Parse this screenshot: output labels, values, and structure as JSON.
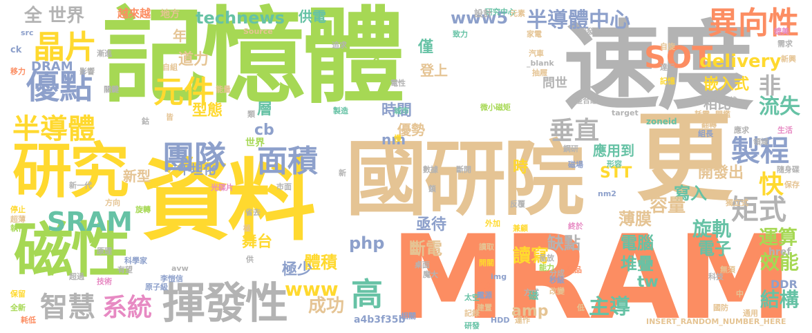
{
  "palette": {
    "green": "#a6d854",
    "yellow": "#ffd92f",
    "tan": "#e5c494",
    "gray": "#b3b3b3",
    "orange": "#fc8d62",
    "blue": "#8da0cb",
    "pink": "#e78ac3",
    "teal": "#66c2a5"
  },
  "words": [
    {
      "text": "記憶體",
      "color": "green"
    },
    {
      "text": "速度",
      "color": "gray"
    },
    {
      "text": "國研院",
      "color": "tan"
    },
    {
      "text": "更",
      "color": "tan"
    },
    {
      "text": "MRAM",
      "color": "orange"
    },
    {
      "text": "資料",
      "color": "yellow"
    },
    {
      "text": "研究",
      "color": "yellow"
    },
    {
      "text": "磁性",
      "color": "green"
    },
    {
      "text": "揮發性",
      "color": "gray"
    },
    {
      "text": "晶片",
      "color": "yellow"
    },
    {
      "text": "優點",
      "color": "blue"
    },
    {
      "text": "全 世界",
      "color": "gray"
    },
    {
      "text": "半導體",
      "color": "yellow"
    },
    {
      "text": "SRAM",
      "color": "teal"
    },
    {
      "text": "智慧",
      "color": "gray"
    },
    {
      "text": "系統",
      "color": "pink"
    },
    {
      "text": "團隊",
      "color": "blue"
    },
    {
      "text": "元件",
      "color": "yellow"
    },
    {
      "text": "道力",
      "color": "tan"
    },
    {
      "text": "面積",
      "color": "blue"
    },
    {
      "text": "SOT",
      "color": "orange"
    },
    {
      "text": "異向性",
      "color": "orange"
    },
    {
      "text": "半導體中心",
      "color": "blue"
    },
    {
      "text": "www5",
      "color": "blue"
    },
    {
      "text": "technews",
      "color": "teal"
    },
    {
      "text": "垂直",
      "color": "gray"
    },
    {
      "text": "製程",
      "color": "blue"
    },
    {
      "text": "流失",
      "color": "teal"
    },
    {
      "text": "快",
      "color": "yellow"
    },
    {
      "text": "矩式",
      "color": "gray"
    },
    {
      "text": "高",
      "color": "teal"
    },
    {
      "text": "成功",
      "color": "tan"
    },
    {
      "text": "主導",
      "color": "teal"
    },
    {
      "text": "結構",
      "color": "teal"
    },
    {
      "text": "效能",
      "color": "green"
    },
    {
      "text": "運算",
      "color": "green"
    },
    {
      "text": "電子",
      "color": "teal"
    },
    {
      "text": "電腦",
      "color": "teal"
    },
    {
      "text": "旋軌",
      "color": "teal"
    },
    {
      "text": "堆疊",
      "color": "teal"
    },
    {
      "text": "讀寫",
      "color": "yellow"
    },
    {
      "text": "斷電",
      "color": "tan"
    },
    {
      "text": "體積",
      "color": "yellow"
    },
    {
      "text": "極少",
      "color": "blue"
    },
    {
      "text": "www",
      "color": "yellow"
    },
    {
      "text": "php",
      "color": "blue"
    },
    {
      "text": "delivery",
      "color": "yellow"
    },
    {
      "text": "嵌入式",
      "color": "yellow"
    },
    {
      "text": "相比",
      "color": "gray"
    },
    {
      "text": "非",
      "color": "gray"
    },
    {
      "text": "時間",
      "color": "blue"
    },
    {
      "text": "型態",
      "color": "yellow"
    },
    {
      "text": "層",
      "color": "teal"
    },
    {
      "text": "開發出",
      "color": "tan"
    },
    {
      "text": "寫入",
      "color": "teal"
    },
    {
      "text": "容量",
      "color": "tan"
    },
    {
      "text": "薄膜",
      "color": "tan"
    },
    {
      "text": "缺點",
      "color": "gray"
    },
    {
      "text": "STT",
      "color": "yellow"
    },
    {
      "text": "tw",
      "color": "teal"
    },
    {
      "text": "DDR",
      "color": "blue"
    },
    {
      "text": "amp",
      "color": "tan"
    },
    {
      "text": "nm",
      "color": "blue"
    },
    {
      "text": "cb",
      "color": "blue"
    },
    {
      "text": "優勢",
      "color": "tan"
    },
    {
      "text": "時",
      "color": "yellow"
    },
    {
      "text": "應用到",
      "color": "teal"
    },
    {
      "text": "亟待",
      "color": "blue"
    },
    {
      "text": "舞台",
      "color": "yellow"
    },
    {
      "text": "平坦化",
      "color": "blue"
    },
    {
      "text": "新型",
      "color": "tan"
    },
    {
      "text": "供電",
      "color": "teal"
    },
    {
      "text": "僅",
      "color": "teal"
    },
    {
      "text": "登上",
      "color": "tan"
    },
    {
      "text": "DRAM",
      "color": "blue"
    },
    {
      "text": "年",
      "color": "tan"
    },
    {
      "text": "問世",
      "color": "gray"
    },
    {
      "text": "研究中心",
      "color": "teal"
    },
    {
      "text": "設計",
      "color": "gray"
    },
    {
      "text": "地方",
      "color": "tan"
    },
    {
      "text": "越來越",
      "color": "orange"
    },
    {
      "text": "a4b3f35b",
      "color": "blue"
    },
    {
      "text": "INSERT_RANDOM_NUMBER_HERE",
      "color": "tan"
    },
    {
      "text": "href",
      "color": "gray"
    },
    {
      "text": "zoneid",
      "color": "teal"
    },
    {
      "text": "微小磁矩",
      "color": "green"
    },
    {
      "text": "光碟片",
      "color": "pink"
    },
    {
      "text": "ck",
      "color": "blue"
    },
    {
      "text": "Source",
      "color": "tan"
    },
    {
      "text": "a",
      "color": "green"
    },
    {
      "text": "img",
      "color": "blue"
    },
    {
      "text": "src",
      "color": "blue"
    },
    {
      "text": "target",
      "color": "gray"
    },
    {
      "text": "nm2",
      "color": "blue"
    },
    {
      "text": "_blank",
      "color": "gray"
    },
    {
      "text": "HDD",
      "color": "blue"
    },
    {
      "text": "avw",
      "color": "gray"
    },
    {
      "text": "李愷信",
      "color": "blue"
    },
    {
      "text": "科學家",
      "color": "blue"
    },
    {
      "text": "保留",
      "color": "yellow"
    },
    {
      "text": "全新",
      "color": "green"
    },
    {
      "text": "耗低",
      "color": "orange"
    },
    {
      "text": "技術",
      "color": "pink"
    },
    {
      "text": "生活",
      "color": "pink"
    },
    {
      "text": "應求",
      "color": "gray"
    },
    {
      "text": "磁場",
      "color": "blue"
    },
    {
      "text": "隨身碟",
      "color": "gray"
    },
    {
      "text": "保存",
      "color": "tan"
    },
    {
      "text": "獨立式",
      "color": "tan"
    },
    {
      "text": "新一代",
      "color": "gray"
    },
    {
      "text": "停止",
      "color": "yellow"
    },
    {
      "text": "執行",
      "color": "green"
    },
    {
      "text": "旋轉",
      "color": "green"
    },
    {
      "text": "數據",
      "color": "gray"
    },
    {
      "text": "製造",
      "color": "teal"
    },
    {
      "text": "城市",
      "color": "teal"
    },
    {
      "text": "整合組",
      "color": "gray"
    },
    {
      "text": "組長",
      "color": "blue"
    },
    {
      "text": "翻轉",
      "color": "tan"
    },
    {
      "text": "科技",
      "color": "gray"
    },
    {
      "text": "原子級",
      "color": "blue"
    },
    {
      "text": "秒級",
      "color": "blue"
    },
    {
      "text": "魔大",
      "color": "gray"
    },
    {
      "text": "反覆",
      "color": "gray"
    },
    {
      "text": "兼顧",
      "color": "yellow"
    },
    {
      "text": "讀取",
      "color": "tan"
    },
    {
      "text": "開關",
      "color": "yellow"
    },
    {
      "text": "能力",
      "color": "green"
    },
    {
      "text": "呈放",
      "color": "gray"
    },
    {
      "text": "改變",
      "color": "tan"
    },
    {
      "text": "記錄",
      "color": "tan"
    },
    {
      "text": "研發",
      "color": "teal"
    },
    {
      "text": "相關",
      "color": "blue"
    },
    {
      "text": "運作",
      "color": "tan"
    },
    {
      "text": "建置",
      "color": "tan"
    },
    {
      "text": "太空",
      "color": "teal"
    },
    {
      "text": "電源",
      "color": "blue"
    },
    {
      "text": "新穎",
      "color": "orange"
    },
    {
      "text": "方式",
      "color": "gray"
    },
    {
      "text": "桌面",
      "color": "gray"
    },
    {
      "text": "市面",
      "color": "gray"
    },
    {
      "text": "外加",
      "color": "yellow"
    },
    {
      "text": "終於",
      "color": "pink"
    },
    {
      "text": "國防",
      "color": "tan"
    },
    {
      "text": "通用",
      "color": "tan"
    },
    {
      "text": "無須",
      "color": "tan"
    },
    {
      "text": "產品",
      "color": "orange"
    },
    {
      "text": "領域",
      "color": "gray"
    },
    {
      "text": "門檻",
      "color": "tan"
    },
    {
      "text": "耗電",
      "color": "tan"
    },
    {
      "text": "鋼研",
      "color": "gray"
    },
    {
      "text": "達示",
      "color": "gray"
    },
    {
      "text": "自旋",
      "color": "tan"
    },
    {
      "text": "記憶",
      "color": "yellow"
    },
    {
      "text": "家電",
      "color": "tan"
    },
    {
      "text": "汽車",
      "color": "tan"
    },
    {
      "text": "抽屜",
      "color": "tan"
    },
    {
      "text": "新興",
      "color": "tan"
    },
    {
      "text": "需求",
      "color": "gray"
    },
    {
      "text": "媲美",
      "color": "pink"
    },
    {
      "text": "元素",
      "color": "tan"
    },
    {
      "text": "致力",
      "color": "teal"
    },
    {
      "text": "追求",
      "color": "gray"
    },
    {
      "text": "影響",
      "color": "gray"
    },
    {
      "text": "關鍵",
      "color": "gray"
    },
    {
      "text": "漸進",
      "color": "gray"
    },
    {
      "text": "移力",
      "color": "orange"
    },
    {
      "text": "自組",
      "color": "tan"
    },
    {
      "text": "電性",
      "color": "gray"
    },
    {
      "text": "能量",
      "color": "tan"
    },
    {
      "text": "鈷",
      "color": "gray"
    },
    {
      "text": "皆",
      "color": "tan"
    },
    {
      "text": "類",
      "color": "gray"
    },
    {
      "text": "慢",
      "color": "yellow"
    },
    {
      "text": "正",
      "color": "yellow"
    },
    {
      "text": "極",
      "color": "tan"
    },
    {
      "text": "省去",
      "color": "gray"
    },
    {
      "text": "供",
      "color": "gray"
    },
    {
      "text": "原理",
      "color": "gray"
    },
    {
      "text": "有望",
      "color": "gray"
    },
    {
      "text": "超過",
      "color": "gray"
    },
    {
      "text": "超薄",
      "color": "tan"
    },
    {
      "text": "方向",
      "color": "tan"
    },
    {
      "text": "形容",
      "color": "teal"
    },
    {
      "text": "分成",
      "color": "gray"
    },
    {
      "text": "磁",
      "color": "teal"
    },
    {
      "text": "低",
      "color": "tan"
    },
    {
      "text": "中",
      "color": "tan"
    },
    {
      "text": "世界",
      "color": "green"
    },
    {
      "text": "尋找",
      "color": "gray"
    },
    {
      "text": "斷開",
      "color": "gray"
    },
    {
      "text": "鎖",
      "color": "gray"
    },
    {
      "text": "研發出",
      "color": "gray"
    },
    {
      "text": "新",
      "color": "gray"
    }
  ]
}
